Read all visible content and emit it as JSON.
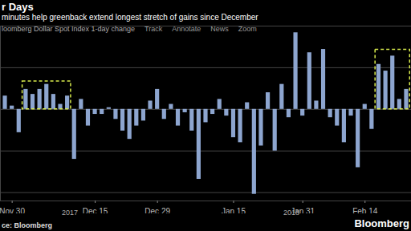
{
  "chart_data": {
    "type": "bar",
    "title": "r Days",
    "subtitle": "minutes help greenback extend longest stretch of gains since December",
    "y_label": "loomberg Dollar Spot Index 1-day change",
    "toolbar": [
      "Track",
      "Annotate",
      "News",
      "Zoom"
    ],
    "x_group_labels": [
      "2017",
      "2018"
    ],
    "source": "ce: Bloomberg",
    "logo": "Bloomberg",
    "categories": [
      null,
      "Nov 30",
      null,
      null,
      null,
      null,
      null,
      null,
      null,
      null,
      null,
      null,
      null,
      "Dec 15",
      null,
      null,
      null,
      null,
      null,
      null,
      null,
      null,
      "Dec 29",
      null,
      null,
      null,
      null,
      null,
      null,
      null,
      null,
      null,
      null,
      "Jan 15",
      null,
      null,
      null,
      null,
      null,
      null,
      null,
      null,
      null,
      "Jan 31",
      null,
      null,
      null,
      null,
      null,
      null,
      null,
      null,
      "Feb 14",
      null,
      null,
      null,
      null,
      null,
      null
    ],
    "values": [
      0.08,
      0.02,
      -0.14,
      0.12,
      0.09,
      0.12,
      0.15,
      0.09,
      0.03,
      0.08,
      -0.3,
      0.06,
      -0.1,
      -0.03,
      -0.03,
      0.01,
      -0.06,
      -0.13,
      -0.18,
      -0.1,
      -0.07,
      0.05,
      0.12,
      -0.06,
      0.03,
      -0.1,
      -0.02,
      -0.13,
      -0.42,
      -0.08,
      -0.03,
      0.06,
      -0.04,
      -0.17,
      -0.2,
      0.04,
      -0.51,
      -0.22,
      0.1,
      -0.25,
      0.15,
      -0.05,
      0.46,
      -0.04,
      0.34,
      0.05,
      0.36,
      -0.05,
      -0.1,
      -0.2,
      -0.04,
      -0.35,
      0.03,
      -0.12,
      0.27,
      0.23,
      0.32,
      0.06,
      0.12
    ],
    "color": "#8da5cf",
    "ylim": [
      -0.55,
      0.5
    ],
    "yticks": [
      -0.5,
      -0.25,
      0,
      0.25,
      0.5
    ],
    "grid": true,
    "tick_labels": "x",
    "annotations": [
      {
        "type": "box",
        "from": 3,
        "to": 9
      },
      {
        "type": "box",
        "from": 54,
        "to": 58
      }
    ]
  }
}
